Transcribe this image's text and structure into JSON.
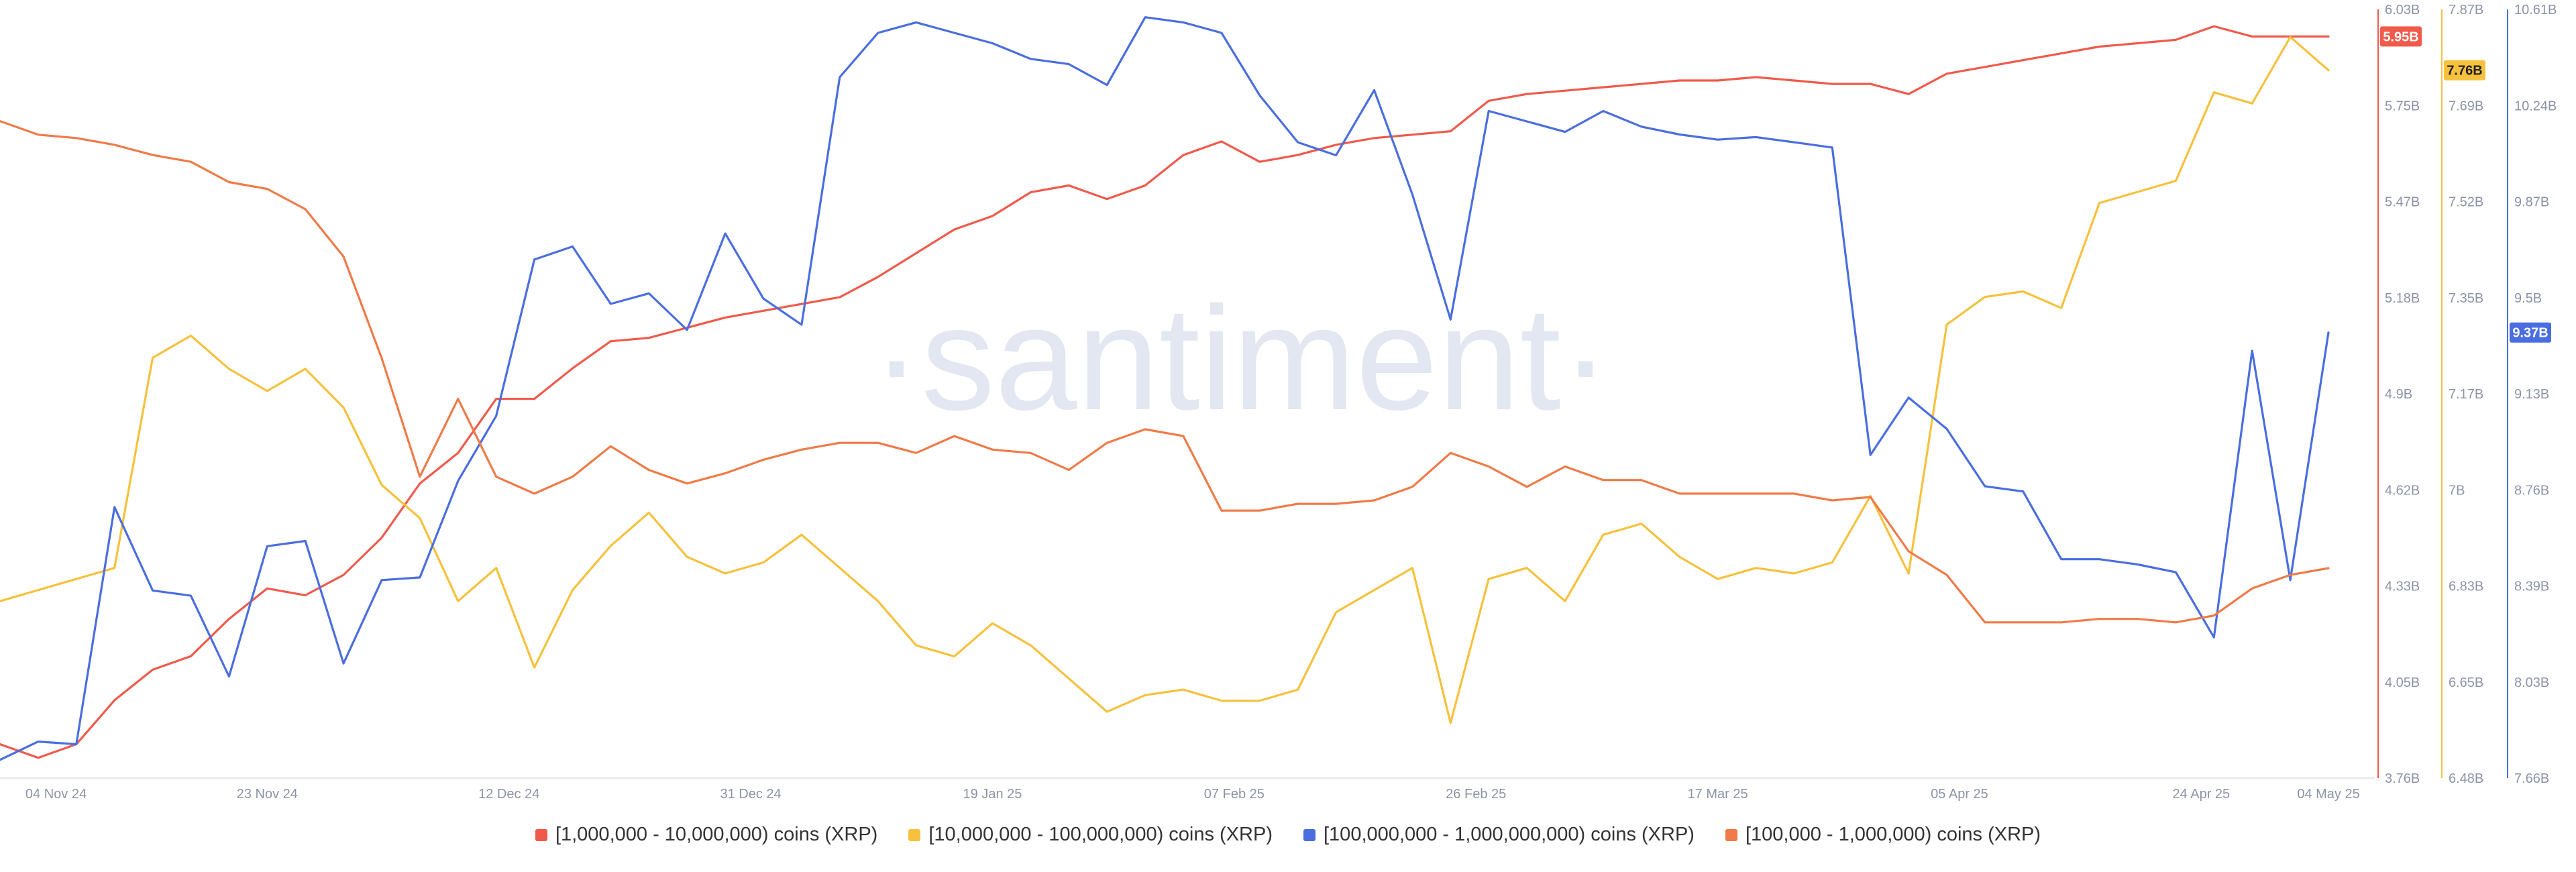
{
  "watermark": "·santiment·",
  "legend": [
    {
      "label": "[1,000,000 - 10,000,000) coins (XRP)",
      "color": "#f05a4b"
    },
    {
      "label": "[10,000,000 - 100,000,000) coins (XRP)",
      "color": "#f6c13c"
    },
    {
      "label": "[100,000,000 - 1,000,000,000) coins (XRP)",
      "color": "#4a6ee0"
    },
    {
      "label": "[100,000  - 1,000,000) coins (XRP)",
      "color": "#f07a48"
    }
  ],
  "chart_data": {
    "type": "line",
    "x_ticks": [
      "04 Nov 24",
      "23 Nov 24",
      "12 Dec 24",
      "31 Dec 24",
      "19 Jan 25",
      "07 Feb 25",
      "26 Feb 25",
      "17 Mar 25",
      "05 Apr 25",
      "24 Apr 25",
      "04 May 25"
    ],
    "x_range": [
      "2024-11-02",
      "2025-05-05"
    ],
    "grid": false,
    "axes": [
      {
        "id": "red",
        "color": "#f05a4b",
        "ticks": [
          "6.03B",
          "5.75B",
          "5.47B",
          "5.18B",
          "4.9B",
          "4.62B",
          "4.33B",
          "4.05B",
          "3.76B"
        ],
        "range": [
          3.76,
          6.03
        ],
        "current_label": "5.95B"
      },
      {
        "id": "yellow",
        "color": "#f6c13c",
        "ticks": [
          "7.87B",
          "7.69B",
          "7.52B",
          "7.35B",
          "7.17B",
          "7B",
          "6.83B",
          "6.65B",
          "6.48B"
        ],
        "range": [
          6.48,
          7.87
        ],
        "current_label": "7.76B"
      },
      {
        "id": "blue",
        "color": "#4a6ee0",
        "ticks": [
          "10.61B",
          "10.24B",
          "9.87B",
          "9.5B",
          "9.13B",
          "8.76B",
          "8.39B",
          "8.03B",
          "7.66B"
        ],
        "range": [
          7.66,
          10.61
        ],
        "current_label": "9.37B"
      }
    ],
    "series": [
      {
        "name": "[1,000,000 - 10,000,000) coins (XRP)",
        "axis": "red",
        "color": "#f05a4b",
        "x": [
          "2024-11-02",
          "2024-11-05",
          "2024-11-08",
          "2024-11-11",
          "2024-11-14",
          "2024-11-17",
          "2024-11-20",
          "2024-11-23",
          "2024-11-26",
          "2024-11-29",
          "2024-12-02",
          "2024-12-05",
          "2024-12-08",
          "2024-12-11",
          "2024-12-14",
          "2024-12-17",
          "2024-12-20",
          "2024-12-23",
          "2024-12-26",
          "2024-12-29",
          "2025-01-01",
          "2025-01-04",
          "2025-01-07",
          "2025-01-10",
          "2025-01-13",
          "2025-01-16",
          "2025-01-19",
          "2025-01-22",
          "2025-01-25",
          "2025-01-28",
          "2025-01-31",
          "2025-02-03",
          "2025-02-06",
          "2025-02-09",
          "2025-02-12",
          "2025-02-15",
          "2025-02-18",
          "2025-02-21",
          "2025-02-24",
          "2025-02-27",
          "2025-03-02",
          "2025-03-05",
          "2025-03-08",
          "2025-03-11",
          "2025-03-14",
          "2025-03-17",
          "2025-03-20",
          "2025-03-23",
          "2025-03-26",
          "2025-03-29",
          "2025-04-01",
          "2025-04-04",
          "2025-04-07",
          "2025-04-10",
          "2025-04-13",
          "2025-04-16",
          "2025-04-19",
          "2025-04-22",
          "2025-04-25",
          "2025-04-28",
          "2025-05-01",
          "2025-05-04"
        ],
        "values": [
          3.86,
          3.82,
          3.86,
          3.99,
          4.08,
          4.12,
          4.23,
          4.32,
          4.3,
          4.36,
          4.47,
          4.63,
          4.72,
          4.88,
          4.88,
          4.97,
          5.05,
          5.06,
          5.09,
          5.12,
          5.14,
          5.16,
          5.18,
          5.24,
          5.31,
          5.38,
          5.42,
          5.49,
          5.51,
          5.47,
          5.51,
          5.6,
          5.64,
          5.58,
          5.6,
          5.63,
          5.65,
          5.66,
          5.67,
          5.76,
          5.78,
          5.79,
          5.8,
          5.81,
          5.82,
          5.82,
          5.83,
          5.82,
          5.81,
          5.81,
          5.78,
          5.84,
          5.86,
          5.88,
          5.9,
          5.92,
          5.93,
          5.94,
          5.98,
          5.95,
          5.95,
          5.95
        ]
      },
      {
        "name": "[10,000,000 - 100,000,000) coins (XRP)",
        "axis": "yellow",
        "color": "#f6c13c",
        "x": [
          "2024-11-02",
          "2024-11-05",
          "2024-11-08",
          "2024-11-11",
          "2024-11-14",
          "2024-11-17",
          "2024-11-20",
          "2024-11-23",
          "2024-11-26",
          "2024-11-29",
          "2024-12-02",
          "2024-12-05",
          "2024-12-08",
          "2024-12-11",
          "2024-12-14",
          "2024-12-17",
          "2024-12-20",
          "2024-12-23",
          "2024-12-26",
          "2024-12-29",
          "2025-01-01",
          "2025-01-04",
          "2025-01-07",
          "2025-01-10",
          "2025-01-13",
          "2025-01-16",
          "2025-01-19",
          "2025-01-22",
          "2025-01-25",
          "2025-01-28",
          "2025-01-31",
          "2025-02-03",
          "2025-02-06",
          "2025-02-09",
          "2025-02-12",
          "2025-02-15",
          "2025-02-18",
          "2025-02-21",
          "2025-02-24",
          "2025-02-27",
          "2025-03-02",
          "2025-03-05",
          "2025-03-08",
          "2025-03-11",
          "2025-03-14",
          "2025-03-17",
          "2025-03-20",
          "2025-03-23",
          "2025-03-26",
          "2025-03-29",
          "2025-04-01",
          "2025-04-04",
          "2025-04-07",
          "2025-04-10",
          "2025-04-13",
          "2025-04-16",
          "2025-04-19",
          "2025-04-22",
          "2025-04-25",
          "2025-04-28",
          "2025-05-01",
          "2025-05-04"
        ],
        "values": [
          6.8,
          6.82,
          6.84,
          6.86,
          7.24,
          7.28,
          7.22,
          7.18,
          7.22,
          7.15,
          7.01,
          6.95,
          6.8,
          6.86,
          6.68,
          6.82,
          6.9,
          6.96,
          6.88,
          6.85,
          6.87,
          6.92,
          6.86,
          6.8,
          6.72,
          6.7,
          6.76,
          6.72,
          6.66,
          6.6,
          6.63,
          6.64,
          6.62,
          6.62,
          6.64,
          6.78,
          6.82,
          6.86,
          6.58,
          6.84,
          6.86,
          6.8,
          6.92,
          6.94,
          6.88,
          6.84,
          6.86,
          6.85,
          6.87,
          6.99,
          6.85,
          7.3,
          7.35,
          7.36,
          7.33,
          7.52,
          7.54,
          7.56,
          7.72,
          7.7,
          7.82,
          7.76
        ]
      },
      {
        "name": "[100,000,000 - 1,000,000,000) coins (XRP)",
        "axis": "blue",
        "color": "#4a6ee0",
        "x": [
          "2024-11-02",
          "2024-11-05",
          "2024-11-08",
          "2024-11-11",
          "2024-11-14",
          "2024-11-17",
          "2024-11-20",
          "2024-11-23",
          "2024-11-26",
          "2024-11-29",
          "2024-12-02",
          "2024-12-05",
          "2024-12-08",
          "2024-12-11",
          "2024-12-14",
          "2024-12-17",
          "2024-12-20",
          "2024-12-23",
          "2024-12-26",
          "2024-12-29",
          "2025-01-01",
          "2025-01-04",
          "2025-01-07",
          "2025-01-10",
          "2025-01-13",
          "2025-01-16",
          "2025-01-19",
          "2025-01-22",
          "2025-01-25",
          "2025-01-28",
          "2025-01-31",
          "2025-02-03",
          "2025-02-06",
          "2025-02-09",
          "2025-02-12",
          "2025-02-15",
          "2025-02-18",
          "2025-02-21",
          "2025-02-24",
          "2025-02-27",
          "2025-03-02",
          "2025-03-05",
          "2025-03-08",
          "2025-03-11",
          "2025-03-14",
          "2025-03-17",
          "2025-03-20",
          "2025-03-23",
          "2025-03-26",
          "2025-03-29",
          "2025-04-01",
          "2025-04-04",
          "2025-04-07",
          "2025-04-10",
          "2025-04-13",
          "2025-04-16",
          "2025-04-19",
          "2025-04-22",
          "2025-04-25",
          "2025-04-28",
          "2025-05-01",
          "2025-05-04"
        ],
        "values": [
          7.73,
          7.8,
          7.79,
          8.7,
          8.38,
          8.36,
          8.05,
          8.55,
          8.57,
          8.1,
          8.42,
          8.43,
          8.8,
          9.05,
          9.65,
          9.7,
          9.48,
          9.52,
          9.38,
          9.75,
          9.5,
          9.4,
          10.35,
          10.52,
          10.56,
          10.52,
          10.48,
          10.42,
          10.4,
          10.32,
          10.58,
          10.56,
          10.52,
          10.28,
          10.1,
          10.05,
          10.3,
          9.9,
          9.42,
          10.22,
          10.18,
          10.14,
          10.22,
          10.16,
          10.13,
          10.11,
          10.12,
          10.1,
          10.08,
          8.9,
          9.12,
          9.0,
          8.78,
          8.76,
          8.5,
          8.5,
          8.48,
          8.45,
          8.2,
          9.3,
          8.42,
          9.37
        ]
      },
      {
        "name": "[100,000  - 1,000,000) coins (XRP)",
        "axis": "red",
        "color": "#f07a48",
        "x": [
          "2024-11-02",
          "2024-11-05",
          "2024-11-08",
          "2024-11-11",
          "2024-11-14",
          "2024-11-17",
          "2024-11-20",
          "2024-11-23",
          "2024-11-26",
          "2024-11-29",
          "2024-12-02",
          "2024-12-05",
          "2024-12-08",
          "2024-12-11",
          "2024-12-14",
          "2024-12-17",
          "2024-12-20",
          "2024-12-23",
          "2024-12-26",
          "2024-12-29",
          "2025-01-01",
          "2025-01-04",
          "2025-01-07",
          "2025-01-10",
          "2025-01-13",
          "2025-01-16",
          "2025-01-19",
          "2025-01-22",
          "2025-01-25",
          "2025-01-28",
          "2025-01-31",
          "2025-02-03",
          "2025-02-06",
          "2025-02-09",
          "2025-02-12",
          "2025-02-15",
          "2025-02-18",
          "2025-02-21",
          "2025-02-24",
          "2025-02-27",
          "2025-03-02",
          "2025-03-05",
          "2025-03-08",
          "2025-03-11",
          "2025-03-14",
          "2025-03-17",
          "2025-03-20",
          "2025-03-23",
          "2025-03-26",
          "2025-03-29",
          "2025-04-01",
          "2025-04-04",
          "2025-04-07",
          "2025-04-10",
          "2025-04-13",
          "2025-04-16",
          "2025-04-19",
          "2025-04-22",
          "2025-04-25",
          "2025-04-28",
          "2025-05-01",
          "2025-05-04"
        ],
        "values": [
          5.7,
          5.66,
          5.65,
          5.63,
          5.6,
          5.58,
          5.52,
          5.5,
          5.44,
          5.3,
          5.0,
          4.65,
          4.88,
          4.65,
          4.6,
          4.65,
          4.74,
          4.67,
          4.63,
          4.66,
          4.7,
          4.73,
          4.75,
          4.75,
          4.72,
          4.77,
          4.73,
          4.72,
          4.67,
          4.75,
          4.79,
          4.77,
          4.55,
          4.55,
          4.57,
          4.57,
          4.58,
          4.62,
          4.72,
          4.68,
          4.62,
          4.68,
          4.64,
          4.64,
          4.6,
          4.6,
          4.6,
          4.6,
          4.58,
          4.59,
          4.43,
          4.36,
          4.22,
          4.22,
          4.22,
          4.23,
          4.23,
          4.22,
          4.24,
          4.32,
          4.36,
          4.38
        ]
      }
    ]
  }
}
